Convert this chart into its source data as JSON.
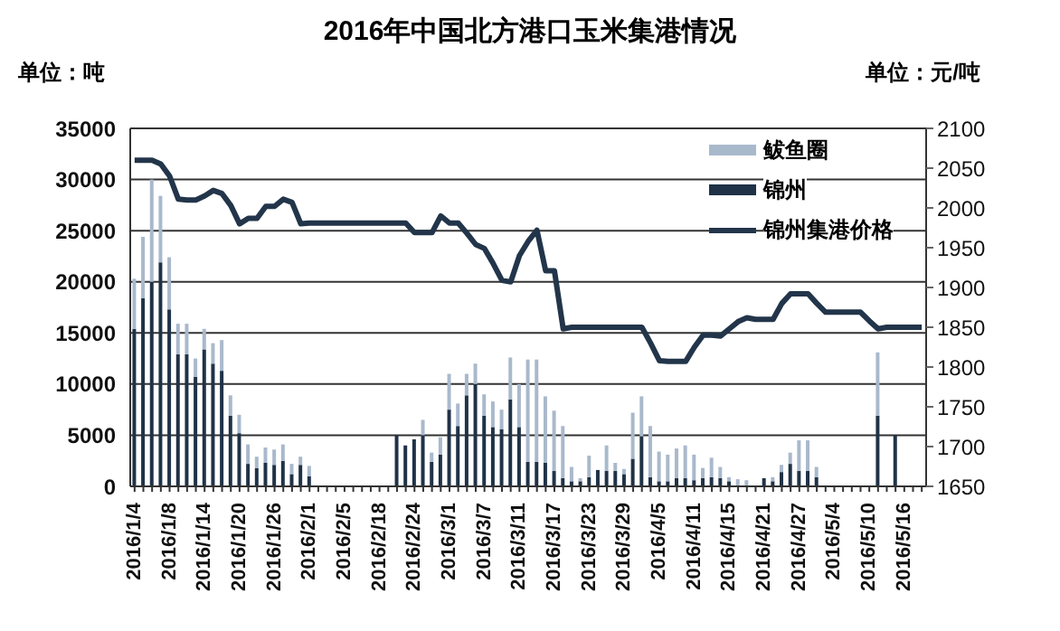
{
  "chart_data": {
    "type": "bar",
    "title": "2016年中国北方港口玉米集港情况",
    "ylabel": "单位：吨",
    "y2label": "单位：元/吨",
    "categories": [
      "2016/1/4",
      null,
      null,
      null,
      "2016/1/8",
      null,
      null,
      null,
      "2016/1/14",
      null,
      null,
      null,
      "2016/1/20",
      null,
      null,
      null,
      "2016/1/26",
      null,
      null,
      null,
      "2016/2/1",
      null,
      null,
      null,
      "2016/2/5",
      null,
      null,
      null,
      "2016/2/18",
      null,
      null,
      null,
      "2016/2/24",
      null,
      null,
      null,
      "2016/3/1",
      null,
      null,
      null,
      "2016/3/7",
      null,
      null,
      null,
      "2016/3/11",
      null,
      null,
      null,
      "2016/3/17",
      null,
      null,
      null,
      "2016/3/23",
      null,
      null,
      null,
      "2016/3/29",
      null,
      null,
      null,
      "2016/4/5",
      null,
      null,
      null,
      "2016/4/11",
      null,
      null,
      null,
      "2016/4/15",
      null,
      null,
      null,
      "2016/4/21",
      null,
      null,
      null,
      "2016/4/27",
      null,
      null,
      null,
      "2016/5/4",
      null,
      null,
      null,
      "2016/5/10",
      null,
      null,
      null,
      "2016/5/16",
      null,
      null
    ],
    "stacked": true,
    "series": [
      {
        "name": "锦州",
        "color": "#1f3247",
        "values": [
          15400,
          18400,
          20000,
          21900,
          17300,
          12900,
          12900,
          10700,
          13400,
          12000,
          11300,
          6900,
          5200,
          2200,
          1800,
          2300,
          2100,
          2500,
          1200,
          2100,
          1000,
          0,
          0,
          0,
          0,
          0,
          0,
          0,
          0,
          0,
          5000,
          4000,
          4600,
          5000,
          2400,
          3100,
          7500,
          5900,
          8900,
          10000,
          6900,
          5800,
          5600,
          8500,
          5800,
          2400,
          2400,
          2300,
          1500,
          800,
          500,
          500,
          900,
          1600,
          1500,
          1500,
          1200,
          2700,
          4900,
          900,
          500,
          500,
          800,
          800,
          600,
          800,
          900,
          800,
          500,
          null,
          null,
          0,
          800,
          500,
          1400,
          2200,
          1500,
          1500,
          900,
          0,
          0,
          0,
          0,
          0,
          0,
          6900,
          0,
          5000,
          0,
          0,
          0
        ]
      },
      {
        "name": "鲅鱼圈",
        "color": "#a9b9cc",
        "values": [
          4900,
          6000,
          10000,
          6500,
          5100,
          3000,
          3000,
          1800,
          2000,
          2000,
          3000,
          2000,
          1800,
          1900,
          1100,
          1500,
          1500,
          1600,
          1000,
          800,
          1000,
          0,
          0,
          0,
          0,
          0,
          0,
          0,
          0,
          0,
          0,
          0,
          null,
          1500,
          900,
          1700,
          3500,
          2200,
          2100,
          2000,
          2100,
          2500,
          1900,
          4100,
          4200,
          10000,
          10000,
          6500,
          5900,
          5100,
          1400,
          300,
          2100,
          null,
          2500,
          800,
          500,
          4500,
          3900,
          5000,
          2900,
          2600,
          2900,
          3200,
          2500,
          1000,
          1900,
          1100,
          400,
          700,
          600,
          0,
          0,
          400,
          700,
          1100,
          3000,
          3000,
          1000,
          0,
          0,
          0,
          0,
          0,
          0,
          6200,
          0,
          0,
          0,
          0,
          0
        ]
      },
      {
        "name": "锦州集港价格",
        "type": "line",
        "axis": "y2",
        "color": "#22354a",
        "values": [
          2060,
          2060,
          2060,
          2055,
          2040,
          2011,
          2010,
          2010,
          2015,
          2022,
          2018,
          2003,
          1980,
          1987,
          1987,
          2002,
          2002,
          2011,
          2007,
          1980,
          1981,
          1981,
          1981,
          1981,
          1981,
          1981,
          1981,
          1981,
          1981,
          1981,
          1981,
          1981,
          1969,
          1969,
          1969,
          1990,
          1981,
          1981,
          1968,
          1954,
          1949,
          1930,
          1909,
          1907,
          1940,
          1958,
          1972,
          1921,
          1921,
          1848,
          1850,
          1850,
          1850,
          1850,
          1850,
          1850,
          1850,
          1850,
          1850,
          1830,
          1808,
          1807,
          1807,
          1807,
          1825,
          1840,
          1840,
          1839,
          1848,
          1857,
          1862,
          1860,
          1860,
          1860,
          1880,
          1892,
          1892,
          1892,
          1880,
          1869,
          1869,
          1869,
          1869,
          1869,
          1858,
          1848,
          1850,
          1850,
          1850,
          1850,
          1850
        ]
      }
    ],
    "ylim": [
      0,
      35000
    ],
    "yticks": [
      0,
      5000,
      10000,
      15000,
      20000,
      25000,
      30000,
      35000
    ],
    "y2lim": [
      1650,
      2100
    ],
    "y2ticks": [
      1650,
      1700,
      1750,
      1800,
      1850,
      1900,
      1950,
      2000,
      2050,
      2100
    ],
    "grid": "y",
    "legend": "top right",
    "marker": "none"
  }
}
